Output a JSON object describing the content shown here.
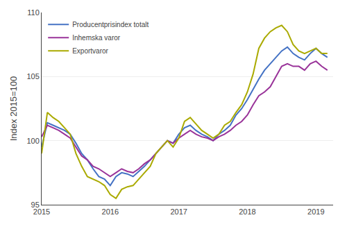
{
  "chart_data": {
    "type": "line",
    "ylabel": "Index 2015=100",
    "x": [
      2015,
      2015.0833333333333,
      2015.1666666666667,
      2015.25,
      2015.3333333333333,
      2015.4166666666667,
      2015.5,
      2015.5833333333333,
      2015.6666666666667,
      2015.75,
      2015.8333333333333,
      2015.9166666666667,
      2016,
      2016.0833333333333,
      2016.1666666666667,
      2016.25,
      2016.3333333333333,
      2016.4166666666667,
      2016.5,
      2016.5833333333333,
      2016.6666666666667,
      2016.75,
      2016.8333333333333,
      2016.9166666666667,
      2017,
      2017.0833333333333,
      2017.1666666666667,
      2017.25,
      2017.3333333333333,
      2017.4166666666667,
      2017.5,
      2017.5833333333333,
      2017.6666666666667,
      2017.75,
      2017.8333333333333,
      2017.9166666666667,
      2018,
      2018.0833333333333,
      2018.1666666666667,
      2018.25,
      2018.3333333333333,
      2018.4166666666667,
      2018.5,
      2018.5833333333333,
      2018.6666666666667,
      2018.75,
      2018.8333333333333,
      2018.9166666666667,
      2019,
      2019.0833333333333,
      2019.1666666666667
    ],
    "series": [
      {
        "name": "Producentprisindex totalt",
        "color": "#4472C4",
        "values": [
          99.5,
          101.4,
          101.2,
          101.0,
          100.8,
          100.5,
          99.8,
          99.0,
          98.5,
          97.8,
          97.2,
          97.0,
          96.5,
          97.2,
          97.5,
          97.4,
          97.2,
          97.6,
          98.0,
          98.5,
          99.0,
          99.5,
          100.0,
          99.8,
          100.5,
          101.0,
          101.2,
          100.8,
          100.5,
          100.3,
          100.0,
          100.5,
          100.8,
          101.2,
          102.0,
          102.5,
          103.2,
          104.0,
          104.8,
          105.5,
          106.0,
          106.5,
          107.0,
          107.3,
          106.8,
          106.5,
          106.3,
          106.8,
          107.2,
          106.8,
          106.5
        ]
      },
      {
        "name": "Inhemska varor",
        "color": "#993399",
        "values": [
          100.3,
          101.2,
          101.0,
          100.8,
          100.5,
          100.2,
          99.5,
          98.8,
          98.5,
          98.0,
          97.8,
          97.5,
          97.2,
          97.5,
          97.8,
          97.6,
          97.5,
          97.8,
          98.2,
          98.5,
          99.0,
          99.5,
          100.0,
          99.8,
          100.2,
          100.5,
          100.8,
          100.5,
          100.3,
          100.2,
          100.0,
          100.3,
          100.5,
          100.8,
          101.2,
          101.5,
          102.0,
          102.8,
          103.5,
          103.8,
          104.2,
          105.0,
          105.8,
          106.0,
          105.8,
          105.8,
          105.5,
          106.0,
          106.2,
          105.8,
          105.5
        ]
      },
      {
        "name": "Exportvaror",
        "color": "#AAAA00",
        "values": [
          99.0,
          102.2,
          101.8,
          101.5,
          101.0,
          100.5,
          99.0,
          98.0,
          97.2,
          97.0,
          96.8,
          96.5,
          95.8,
          95.5,
          96.2,
          96.4,
          96.5,
          97.0,
          97.5,
          98.0,
          99.0,
          99.5,
          100.0,
          99.5,
          100.2,
          101.5,
          101.8,
          101.3,
          100.8,
          100.5,
          100.2,
          100.5,
          101.2,
          101.5,
          102.2,
          102.8,
          103.8,
          105.2,
          107.2,
          108.0,
          108.5,
          108.8,
          109.0,
          108.5,
          107.5,
          107.0,
          106.8,
          107.0,
          107.2,
          106.8,
          106.8
        ]
      }
    ],
    "xlim": [
      2015.0,
      2019.25
    ],
    "xticks": [
      2015,
      2016,
      2017,
      2018,
      2019
    ],
    "ylim": [
      95,
      110
    ],
    "yticks": [
      95,
      100,
      105,
      110
    ],
    "grid": "y",
    "legend": "upper left"
  }
}
